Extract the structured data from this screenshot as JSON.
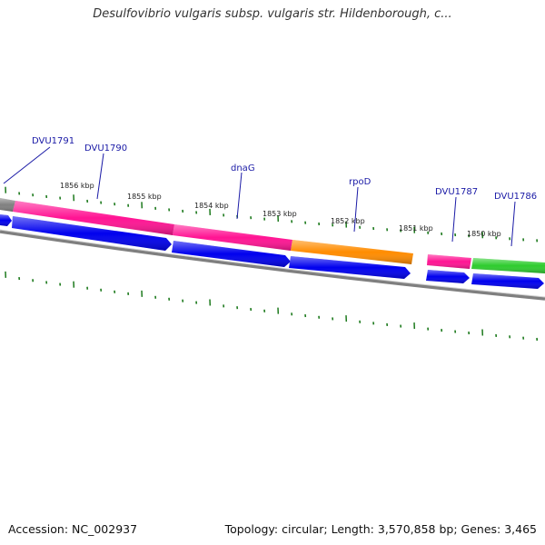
{
  "title": "Desulfovibrio vulgaris subsp. vulgaris str. Hildenborough, c...",
  "footer": {
    "accession": "Accession: NC_002937",
    "summary": "Topology: circular; Length: 3,570,858 bp; Genes: 3,465"
  },
  "colors": {
    "tick": "#1d7a1d",
    "backbone": "#8a8a8a",
    "cds": "#0000ee",
    "label": "#1a1aa6"
  },
  "kbp_labels": [
    "1856 kbp",
    "1855 kbp",
    "1854 kbp",
    "1853 kbp",
    "1852 kbp",
    "1851 kbp",
    "1850 kbp"
  ],
  "genes": [
    {
      "name": "DVU1791",
      "feature_color": "#808080"
    },
    {
      "name": "DVU1790",
      "feature_color": "#ff1493"
    },
    {
      "name": "dnaG",
      "feature_color": "#ff1493"
    },
    {
      "name": "rpoD",
      "feature_color": "#ff8c00"
    },
    {
      "name": "DVU1787",
      "feature_color": "#ff1493"
    },
    {
      "name": "DVU1786",
      "feature_color": "#2ecc2e"
    }
  ]
}
